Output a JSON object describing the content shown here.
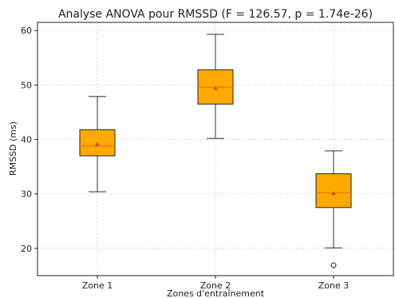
{
  "chart_data": {
    "type": "box",
    "title": "Analyse ANOVA pour RMSSD (F = 126.57, p = 1.74e-26)",
    "xlabel": "Zones d'entraînement",
    "ylabel": "RMSSD (ms)",
    "ylim": [
      15,
      61.5
    ],
    "yticks": [
      20,
      30,
      40,
      50,
      60
    ],
    "grid": true,
    "colors": {
      "box_fill": "#FFAA00",
      "median": "#E07B00",
      "mean": "#E8423A",
      "whisker": "#333333"
    },
    "categories": [
      "Zone 1",
      "Zone 2",
      "Zone 3"
    ],
    "boxes": [
      {
        "name": "Zone 1",
        "whisker_low": 30.4,
        "q1": 37.0,
        "median": 38.8,
        "q3": 41.8,
        "whisker_high": 47.9,
        "mean": 39.1,
        "outliers": []
      },
      {
        "name": "Zone 2",
        "whisker_low": 40.2,
        "q1": 46.5,
        "median": 49.6,
        "q3": 52.8,
        "whisker_high": 59.3,
        "mean": 49.4,
        "outliers": []
      },
      {
        "name": "Zone 3",
        "whisker_low": 20.1,
        "q1": 27.5,
        "median": 30.2,
        "q3": 33.7,
        "whisker_high": 37.9,
        "mean": 30.1,
        "outliers": [
          16.9
        ]
      }
    ]
  }
}
